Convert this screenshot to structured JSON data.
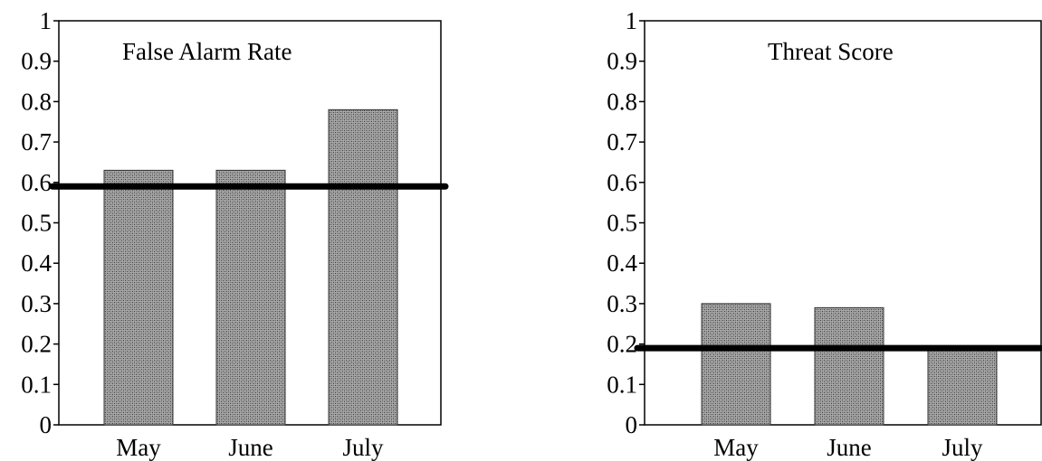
{
  "chart_data": [
    {
      "type": "bar",
      "title": "False Alarm Rate",
      "categories": [
        "May",
        "June",
        "July"
      ],
      "values": [
        0.63,
        0.63,
        0.78
      ],
      "reference_line": 0.59,
      "ylim": [
        0,
        1
      ],
      "yticks": [
        0,
        0.1,
        0.2,
        0.3,
        0.4,
        0.5,
        0.6,
        0.7,
        0.8,
        0.9,
        1
      ],
      "ytick_labels": [
        "0",
        "0.1",
        "0.2",
        "0.3",
        "0.4",
        "0.5",
        "0.6",
        "0.7",
        "0.8",
        "0.9",
        "1"
      ],
      "xlabel": "",
      "ylabel": "",
      "grid": false,
      "legend": "none",
      "bar_color": "#8c8c8c",
      "reference_color": "#000000"
    },
    {
      "type": "bar",
      "title": "Threat Score",
      "categories": [
        "May",
        "June",
        "July"
      ],
      "values": [
        0.3,
        0.29,
        0.19
      ],
      "reference_line": 0.19,
      "ylim": [
        0,
        1
      ],
      "yticks": [
        0,
        0.1,
        0.2,
        0.3,
        0.4,
        0.5,
        0.6,
        0.7,
        0.8,
        0.9,
        1
      ],
      "ytick_labels": [
        "0",
        "0.1",
        "0.2",
        "0.3",
        "0.4",
        "0.5",
        "0.6",
        "0.7",
        "0.8",
        "0.9",
        "1"
      ],
      "xlabel": "",
      "ylabel": "",
      "grid": false,
      "legend": "none",
      "bar_color": "#8c8c8c",
      "reference_color": "#000000"
    }
  ]
}
